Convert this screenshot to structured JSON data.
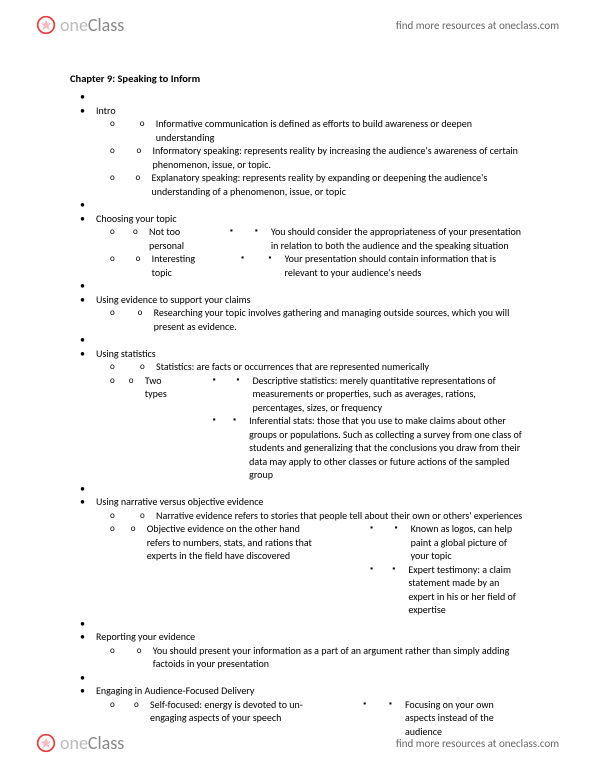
{
  "header": {
    "logo_one": "one",
    "logo_class": "Class",
    "link_text": "find more resources at oneclass.com"
  },
  "chapter_title": "Chapter 9: Speaking to Inform",
  "outline": [
    {
      "label": "Intro",
      "children": [
        {
          "label": "Informative communication is defined as efforts to build awareness or deepen understanding"
        },
        {
          "label": "Informatory speaking: represents reality by increasing the audience's awareness of certain phenomenon, issue, or topic."
        },
        {
          "label": "Explanatory speaking: represents reality by expanding or deepening the audience's understanding of a phenomenon, issue, or topic"
        }
      ]
    },
    {
      "label": "Choosing your topic",
      "children": [
        {
          "label": "Not too personal",
          "children": [
            {
              "label": "You should consider the appropriateness of your presentation in relation to both the audience and the speaking situation"
            }
          ]
        },
        {
          "label": "Interesting topic",
          "children": [
            {
              "label": "Your presentation should contain information that is relevant to your audience's needs"
            }
          ]
        }
      ]
    },
    {
      "label": "Using evidence to support your claims",
      "children": [
        {
          "label": "Researching your topic involves gathering and managing outside sources, which you will present as evidence."
        }
      ]
    },
    {
      "label": "Using statistics",
      "children": [
        {
          "label": "Statistics: are facts or occurrences that are represented numerically"
        },
        {
          "label": "Two types",
          "children": [
            {
              "label": "Descriptive statistics: merely quantitative representations of measurements or properties, such as averages, rations, percentages, sizes, or frequency"
            },
            {
              "label": "Inferential stats: those that you use to make claims about other groups or populations. Such as collecting a survey from one class of students and generalizing that the conclusions you draw from their data may apply to other classes or future actions of the sampled group"
            }
          ]
        }
      ]
    },
    {
      "label": "Using narrative versus objective evidence",
      "children": [
        {
          "label": "Narrative evidence refers to stories that people tell about their own or others' experiences"
        },
        {
          "label": "Objective evidence on the other hand refers to numbers, stats, and rations that experts in the field have discovered",
          "children": [
            {
              "label": "Known as logos, can help paint a global picture of your topic"
            },
            {
              "label": "Expert testimony: a claim statement made by an expert in his or her field of expertise"
            }
          ]
        }
      ]
    },
    {
      "label": "Reporting your evidence",
      "children": [
        {
          "label": "You should present your information as a part of an argument rather than simply adding factoids in your presentation"
        }
      ]
    },
    {
      "label": "Engaging in Audience-Focused Delivery",
      "children": [
        {
          "label": "Self-focused: energy is devoted to un-engaging aspects of your speech",
          "children": [
            {
              "label": "Focusing on your own aspects instead of the audience"
            }
          ]
        }
      ]
    }
  ],
  "footer": {
    "logo_one": "one",
    "logo_class": "Class",
    "link_text": "find more resources at oneclass.com"
  }
}
